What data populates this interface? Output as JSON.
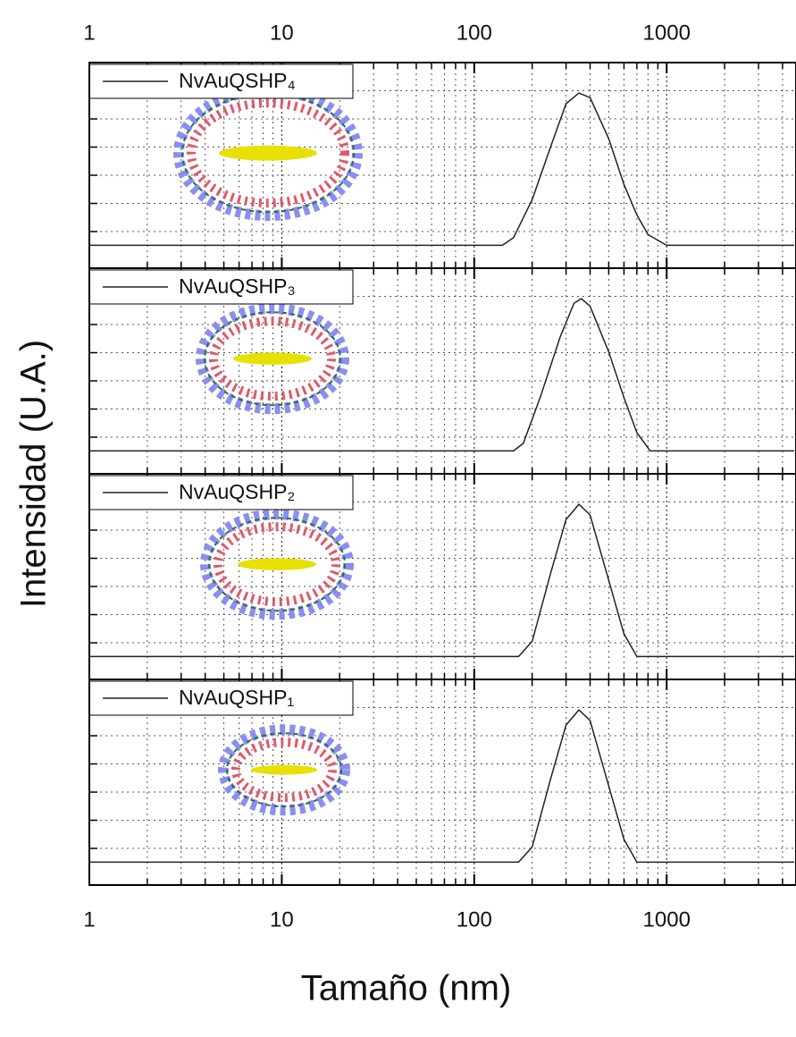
{
  "chart_data": [
    {
      "type": "line",
      "xscale": "log",
      "xlim": [
        1,
        4600
      ],
      "xticks": [
        1,
        10,
        100,
        1000
      ],
      "ylim": [
        -0.15,
        1.2
      ],
      "grid": true,
      "legend": "upper left",
      "ylabel": "Intensidad (U.A.)",
      "series": [
        {
          "name": "NvAuQSHP₄",
          "color": "#222222",
          "x": [
            1,
            140,
            160,
            200,
            250,
            300,
            350,
            400,
            500,
            600,
            700,
            800,
            1000,
            4600
          ],
          "values": [
            0,
            0,
            0.05,
            0.3,
            0.65,
            0.93,
            1.0,
            0.97,
            0.7,
            0.4,
            0.2,
            0.07,
            0,
            0
          ]
        }
      ]
    },
    {
      "type": "line",
      "xscale": "log",
      "xlim": [
        1,
        4600
      ],
      "xticks": [
        1,
        10,
        100,
        1000
      ],
      "ylim": [
        -0.15,
        1.2
      ],
      "grid": true,
      "legend": "upper left",
      "series": [
        {
          "name": "NvAuQSHP₃",
          "color": "#222222",
          "x": [
            1,
            160,
            180,
            220,
            280,
            330,
            360,
            400,
            500,
            600,
            700,
            800,
            820,
            4600
          ],
          "values": [
            0,
            0,
            0.05,
            0.35,
            0.75,
            0.97,
            1.0,
            0.95,
            0.65,
            0.35,
            0.12,
            0.02,
            0,
            0
          ]
        }
      ]
    },
    {
      "type": "line",
      "xscale": "log",
      "xlim": [
        1,
        4600
      ],
      "xticks": [
        1,
        10,
        100,
        1000
      ],
      "ylim": [
        -0.15,
        1.2
      ],
      "grid": true,
      "legend": "upper left",
      "series": [
        {
          "name": "NvAuQSHP₂",
          "color": "#222222",
          "x": [
            1,
            170,
            200,
            250,
            300,
            350,
            400,
            500,
            600,
            700,
            4600
          ],
          "values": [
            0,
            0,
            0.1,
            0.55,
            0.9,
            1.0,
            0.93,
            0.5,
            0.15,
            0,
            0
          ]
        }
      ]
    },
    {
      "type": "line",
      "xscale": "log",
      "xlim": [
        1,
        4600
      ],
      "xticks": [
        1,
        10,
        100,
        1000
      ],
      "ylim": [
        -0.15,
        1.2
      ],
      "grid": true,
      "legend": "upper left",
      "xlabel": "Tamaño (nm)",
      "series": [
        {
          "name": "NvAuQSHP₁",
          "color": "#222222",
          "x": [
            1,
            170,
            200,
            250,
            300,
            350,
            400,
            500,
            600,
            700,
            4600
          ],
          "values": [
            0,
            0,
            0.1,
            0.55,
            0.9,
            1.0,
            0.93,
            0.5,
            0.15,
            0,
            0
          ]
        }
      ]
    }
  ]
}
